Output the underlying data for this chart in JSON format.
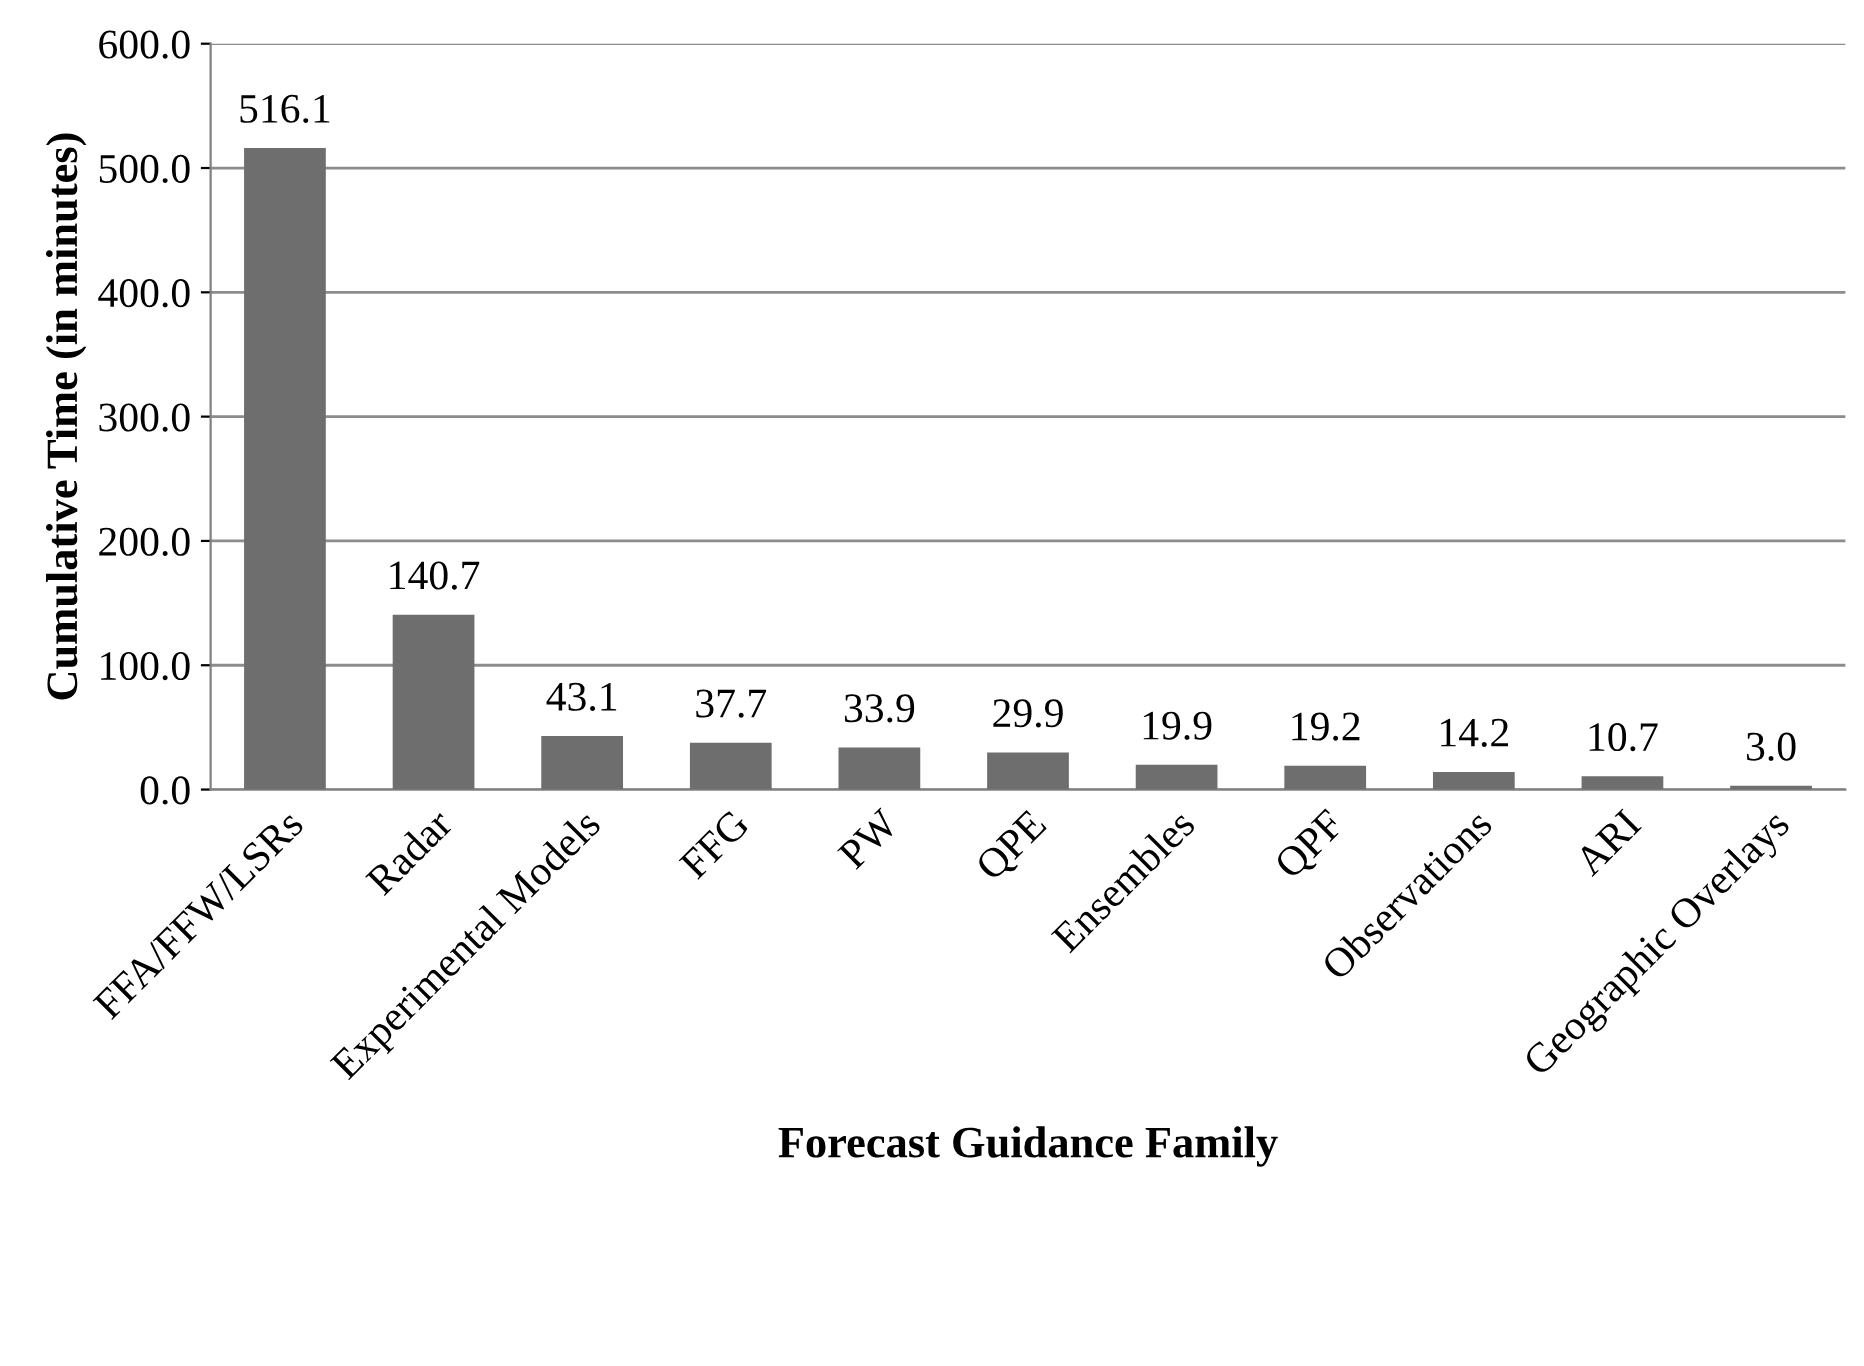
{
  "chart_data": {
    "type": "bar",
    "xlabel": "Forecast Guidance Family",
    "ylabel": "Cumulative Time (in minutes)",
    "categories": [
      "FFA/FFW/LSRs",
      "Radar",
      "Experimental Models",
      "FFG",
      "PW",
      "QPE",
      "Ensembles",
      "QPF",
      "Observations",
      "ARI",
      "Geographic Overlays"
    ],
    "values": [
      516.1,
      140.7,
      43.1,
      37.7,
      33.9,
      29.9,
      19.9,
      19.2,
      14.2,
      10.7,
      3.0
    ],
    "color": "#6e6e6e",
    "ylim": [
      0,
      600
    ],
    "yticks": [
      {
        "value": 0,
        "label": "0.0"
      },
      {
        "value": 100,
        "label": "100.0"
      },
      {
        "value": 200,
        "label": "200.0"
      },
      {
        "value": 300,
        "label": "300.0"
      },
      {
        "value": 400,
        "label": "400.0"
      },
      {
        "value": 500,
        "label": "500.0"
      },
      {
        "value": 600,
        "label": "600.0"
      }
    ],
    "grid": "y",
    "value_labels": [
      "516.1",
      "140.7",
      "43.1",
      "37.7",
      "33.9",
      "29.9",
      "19.9",
      "19.2",
      "14.2",
      "10.7",
      "3.0"
    ]
  }
}
